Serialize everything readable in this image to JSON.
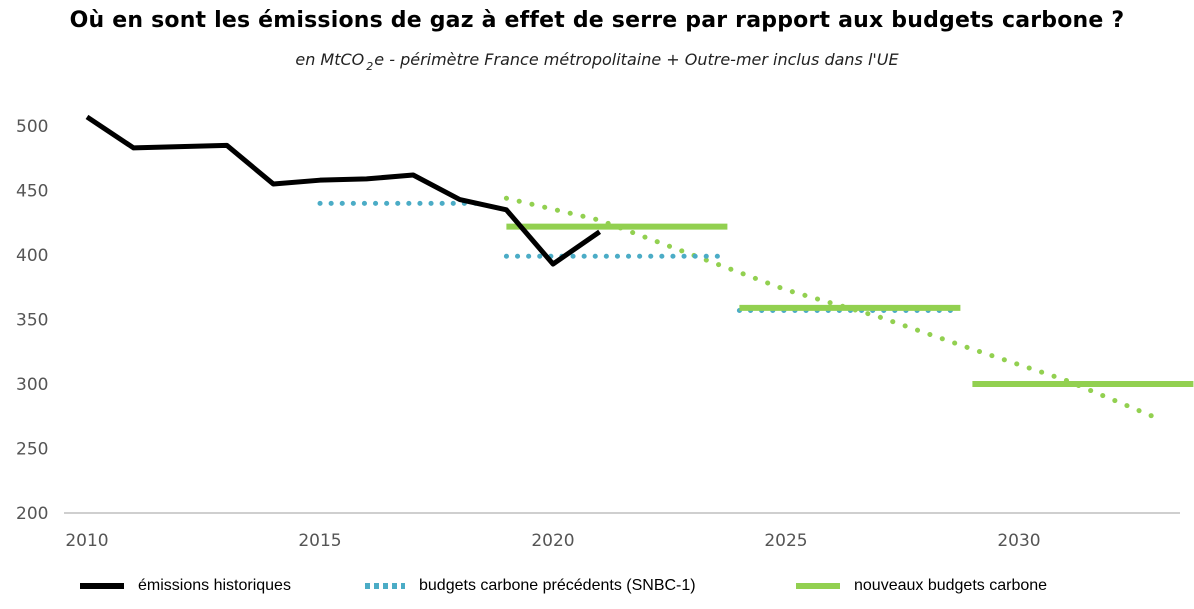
{
  "title": "Où en sont les émissions de gaz à effet de serre par rapport aux budgets carbone ?",
  "subtitle": {
    "before": "en MtCO",
    "sub": "2",
    "after": "e - périmètre France métropolitaine + Outre-mer inclus dans l'UE"
  },
  "colors": {
    "historic": "#000000",
    "snbc1": "#4bacc6",
    "new_budget": "#92d050",
    "axis": "#bfbfbf",
    "tick_text": "#595959"
  },
  "legend": [
    {
      "key": "historic",
      "label": "émissions historiques",
      "style": "solid"
    },
    {
      "key": "snbc1",
      "label": "budgets carbone précédents (SNBC-1)",
      "style": "dotted"
    },
    {
      "key": "new_budget",
      "label": "nouveaux budgets carbone",
      "style": "solid"
    }
  ],
  "chart_data": {
    "type": "line",
    "xlim": [
      2010,
      2033
    ],
    "ylim": [
      200,
      510
    ],
    "x_ticks": [
      2010,
      2015,
      2020,
      2025,
      2030
    ],
    "y_ticks": [
      200,
      250,
      300,
      350,
      400,
      450,
      500
    ],
    "grid": false,
    "legend_position": "bottom",
    "historic": {
      "x": [
        2010,
        2011,
        2012,
        2013,
        2014,
        2015,
        2016,
        2017,
        2018,
        2019,
        2020,
        2021
      ],
      "y": [
        507,
        483,
        484,
        485,
        455,
        458,
        459,
        462,
        443,
        435,
        393,
        418
      ]
    },
    "snbc1_budgets": [
      {
        "x_start": 2015,
        "x_end": 2018,
        "y": 440
      },
      {
        "x_start": 2019,
        "x_end": 2023,
        "y": 399
      },
      {
        "x_start": 2024,
        "x_end": 2028,
        "y": 357
      }
    ],
    "new_budgets": [
      {
        "x_start": 2019,
        "x_end": 2023,
        "y": 422
      },
      {
        "x_start": 2024,
        "x_end": 2028,
        "y": 359
      },
      {
        "x_start": 2029,
        "x_end": 2033,
        "y": 300
      }
    ],
    "new_trajectory": {
      "x": [
        2019,
        2021,
        2023,
        2025,
        2027,
        2029,
        2031,
        2033
      ],
      "y": [
        444,
        427,
        400,
        373,
        352,
        327,
        303,
        273
      ]
    }
  }
}
